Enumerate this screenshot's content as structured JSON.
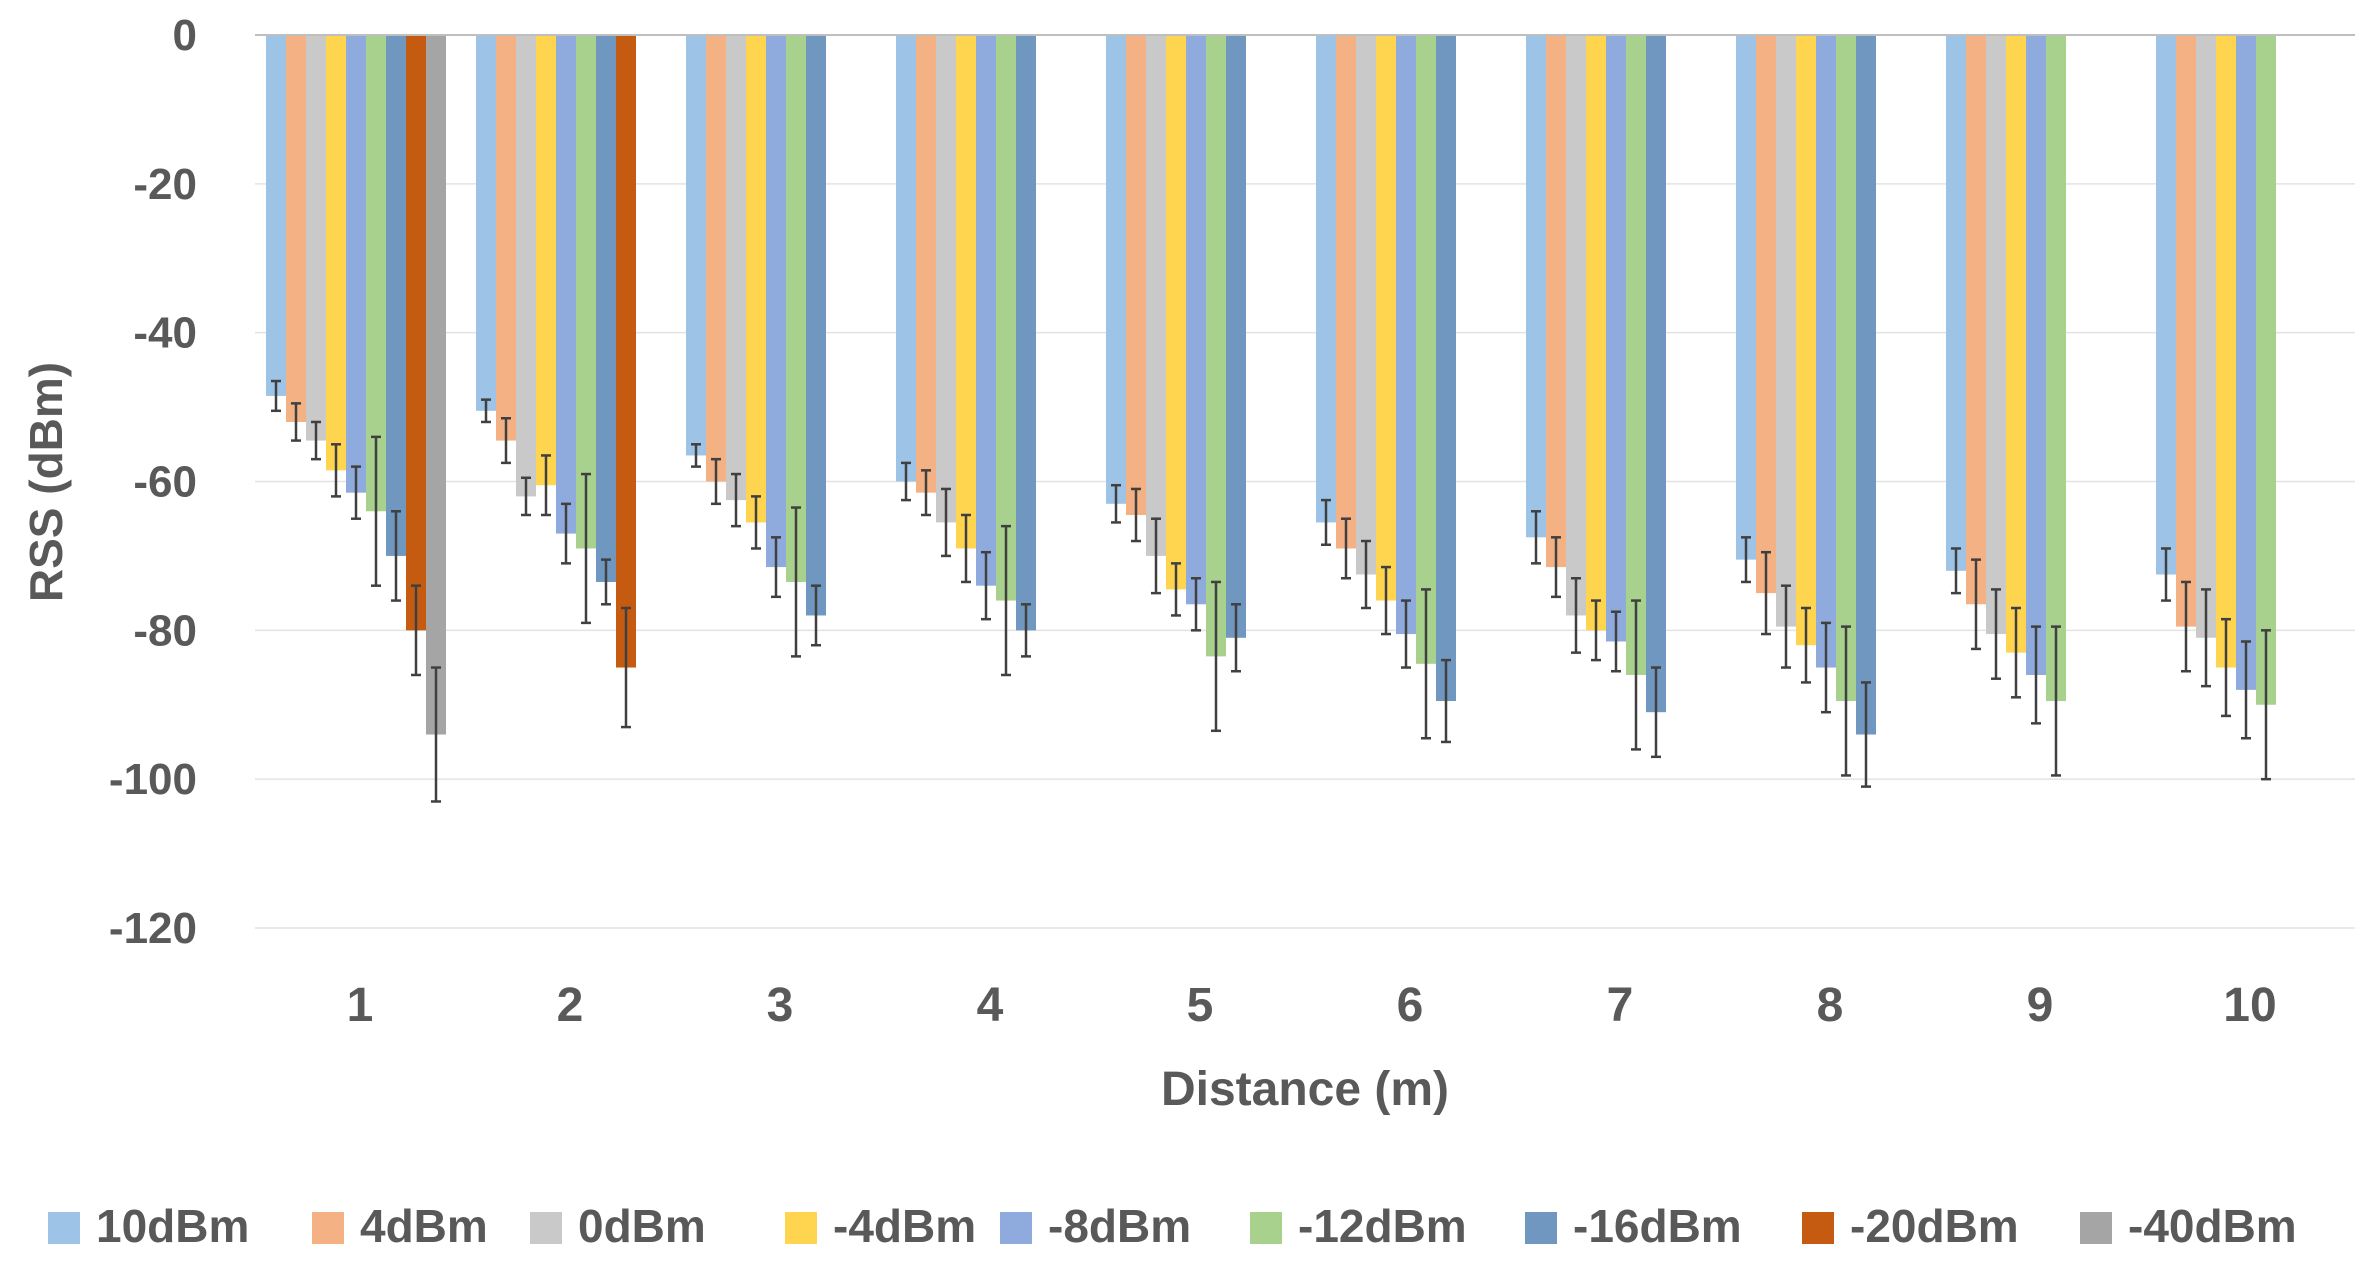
{
  "chart_data": {
    "type": "bar",
    "title": "",
    "xlabel": "Distance (m)",
    "ylabel": "RSS (dBm)",
    "ylim": [
      -120,
      0
    ],
    "yticks": [
      0,
      -20,
      -40,
      -60,
      -80,
      -100,
      -120
    ],
    "grid": true,
    "legend_position": "bottom",
    "categories": [
      "1",
      "2",
      "3",
      "4",
      "5",
      "6",
      "7",
      "8",
      "9",
      "10"
    ],
    "series": [
      {
        "name": "10dBm",
        "color": "#9DC3E6",
        "values": [
          -48.5,
          -50.5,
          -56.5,
          -60.0,
          -63.0,
          -65.5,
          -67.5,
          -70.5,
          -72.0,
          -72.5
        ],
        "errors": [
          2.0,
          1.5,
          1.5,
          2.5,
          2.5,
          3.0,
          3.5,
          3.0,
          3.0,
          3.5
        ]
      },
      {
        "name": "4dBm",
        "color": "#F4B183",
        "values": [
          -52.0,
          -54.5,
          -60.0,
          -61.5,
          -64.5,
          -69.0,
          -71.5,
          -75.0,
          -76.5,
          -79.5
        ],
        "errors": [
          2.5,
          3.0,
          3.0,
          3.0,
          3.5,
          4.0,
          4.0,
          5.5,
          6.0,
          6.0
        ]
      },
      {
        "name": "0dBm",
        "color": "#C9C9C9",
        "values": [
          -54.5,
          -62.0,
          -62.5,
          -65.5,
          -70.0,
          -72.5,
          -78.0,
          -79.5,
          -80.5,
          -81.0
        ],
        "errors": [
          2.5,
          2.5,
          3.5,
          4.5,
          5.0,
          4.5,
          5.0,
          5.5,
          6.0,
          6.5
        ]
      },
      {
        "name": "-4dBm",
        "color": "#FFD54F",
        "values": [
          -58.5,
          -60.5,
          -65.5,
          -69.0,
          -74.5,
          -76.0,
          -80.0,
          -82.0,
          -83.0,
          -85.0
        ],
        "errors": [
          3.5,
          4.0,
          3.5,
          4.5,
          3.5,
          4.5,
          4.0,
          5.0,
          6.0,
          6.5
        ]
      },
      {
        "name": "-8dBm",
        "color": "#8FAADC",
        "values": [
          -61.5,
          -67.0,
          -71.5,
          -74.0,
          -76.5,
          -80.5,
          -81.5,
          -85.0,
          -86.0,
          -88.0
        ],
        "errors": [
          3.5,
          4.0,
          4.0,
          4.5,
          3.5,
          4.5,
          4.0,
          6.0,
          6.5,
          6.5
        ]
      },
      {
        "name": "-12dBm",
        "color": "#A9D18E",
        "values": [
          -64.0,
          -69.0,
          -73.5,
          -76.0,
          -83.5,
          -84.5,
          -86.0,
          -89.5,
          -89.5,
          -90.0
        ],
        "errors": [
          10.0,
          10.0,
          10.0,
          10.0,
          10.0,
          10.0,
          10.0,
          10.0,
          10.0,
          10.0
        ]
      },
      {
        "name": "-16dBm",
        "color": "#6F97BF",
        "values": [
          -70.0,
          -73.5,
          -78.0,
          -80.0,
          -81.0,
          -89.5,
          -91.0,
          -94.0,
          null,
          null
        ],
        "errors": [
          6.0,
          3.0,
          4.0,
          3.5,
          4.5,
          5.5,
          6.0,
          7.0,
          null,
          null
        ]
      },
      {
        "name": "-20dBm",
        "color": "#C55A11",
        "values": [
          -80.0,
          -85.0,
          null,
          null,
          null,
          null,
          null,
          null,
          null,
          null
        ],
        "errors": [
          6.0,
          8.0,
          null,
          null,
          null,
          null,
          null,
          null,
          null,
          null
        ]
      },
      {
        "name": "-40dBm",
        "color": "#A5A5A5",
        "values": [
          -94.0,
          null,
          null,
          null,
          null,
          null,
          null,
          null,
          null,
          null
        ],
        "errors": [
          9.0,
          null,
          null,
          null,
          null,
          null,
          null,
          null,
          null,
          null
        ]
      }
    ]
  }
}
